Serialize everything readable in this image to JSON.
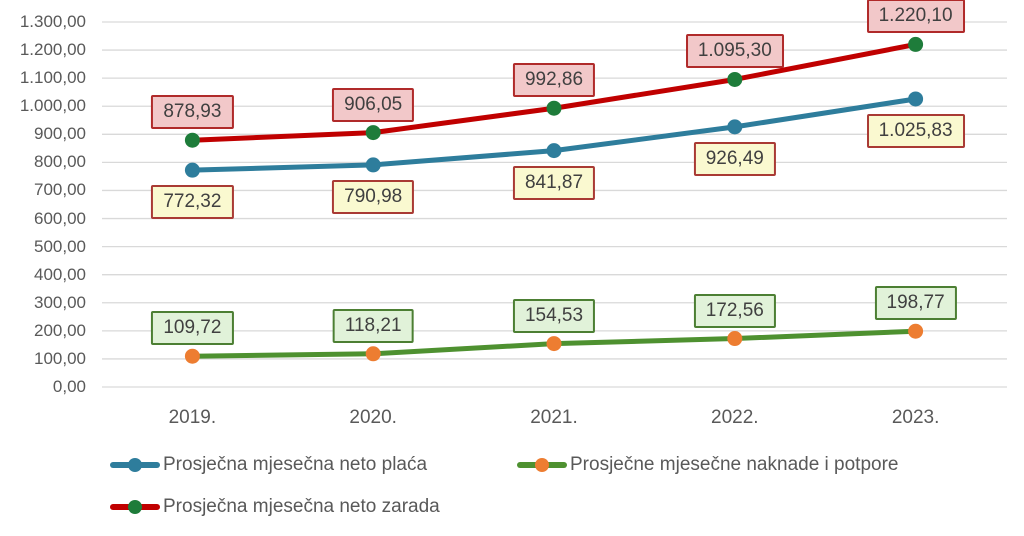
{
  "chart_data": {
    "type": "line",
    "title": "",
    "xlabel": "",
    "ylabel": "",
    "categories": [
      "2019.",
      "2020.",
      "2021.",
      "2022.",
      "2023."
    ],
    "y_axis": {
      "min": 0,
      "max": 1300,
      "step": 100,
      "tick_labels": [
        "0,00",
        "100,00",
        "200,00",
        "300,00",
        "400,00",
        "500,00",
        "600,00",
        "700,00",
        "800,00",
        "900,00",
        "1.000,00",
        "1.100,00",
        "1.200,00",
        "1.300,00"
      ]
    },
    "grid": true,
    "gridline_color": "#D9D9D9",
    "legend_position": "bottom",
    "series": [
      {
        "name": "Prosječna mjesečna neto plaća",
        "values": [
          772.32,
          790.98,
          841.87,
          926.49,
          1025.83
        ],
        "data_labels": [
          "772,32",
          "790,98",
          "841,87",
          "926,49",
          "1.025,83"
        ],
        "line_color": "#2E7D9C",
        "marker_color": "#2E7D9C",
        "label_fill": "#FAF9D0",
        "label_border": "#A93A34",
        "label_side": "below"
      },
      {
        "name": "Prosječna mjesečna neto zarada",
        "values": [
          878.93,
          906.05,
          992.86,
          1095.3,
          1220.1
        ],
        "data_labels": [
          "878,93",
          "906,05",
          "992,86",
          "1.095,30",
          "1.220,10"
        ],
        "line_color": "#C00000",
        "marker_color": "#1E7C3A",
        "label_fill": "#F2C8C9",
        "label_border": "#B02A2A",
        "label_side": "above"
      },
      {
        "name": "Prosječne mjesečne naknade i potpore",
        "values": [
          109.72,
          118.21,
          154.53,
          172.56,
          198.77
        ],
        "data_labels": [
          "109,72",
          "118,21",
          "154,53",
          "172,56",
          "198,77"
        ],
        "line_color": "#4E9130",
        "marker_color": "#ED7D31",
        "label_fill": "#E1F2D9",
        "label_border": "#4C7F33",
        "label_side": "above"
      }
    ]
  }
}
